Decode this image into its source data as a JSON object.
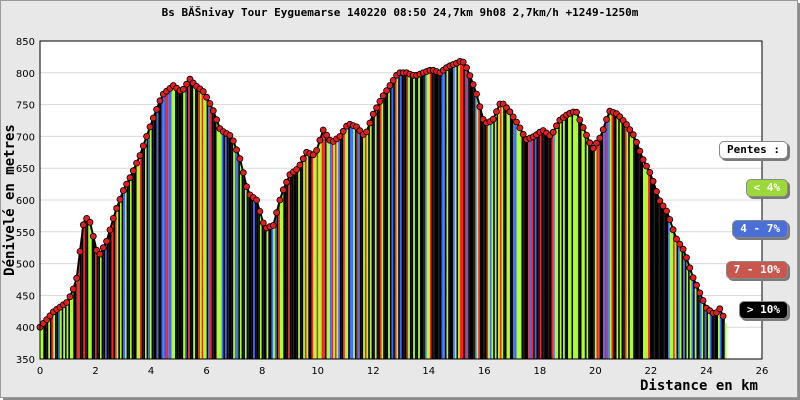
{
  "chart_data": {
    "type": "area",
    "title": "Bs BĂŠnivay Tour Eyguemarse 140220 08:50 24,7km 9h08 2,7km/h +1249-1250m",
    "xlabel": "Distance en km",
    "ylabel": "Dénivelé en metres",
    "xlim": [
      0,
      26
    ],
    "ylim": [
      350,
      850
    ],
    "x_ticks": [
      "0",
      "2",
      "4",
      "6",
      "8",
      "10",
      "12",
      "14",
      "16",
      "18",
      "20",
      "22",
      "24",
      "26"
    ],
    "y_ticks": [
      "350",
      "400",
      "450",
      "500",
      "550",
      "600",
      "650",
      "700",
      "750",
      "800",
      "850"
    ],
    "grid": true,
    "legend_placement": "right",
    "series": [
      {
        "x": [
          0,
          0.5,
          1.0,
          1.3,
          1.6,
          1.8,
          2.1,
          2.4,
          2.7,
          3.0,
          3.3,
          3.6,
          4.0,
          4.4,
          4.8,
          5.1,
          5.4,
          5.6,
          5.9,
          6.2,
          6.5,
          6.9,
          7.2,
          7.5,
          7.8,
          8.1,
          8.4,
          8.7,
          9.0,
          9.3,
          9.6,
          9.9,
          10.2,
          10.5,
          10.8,
          11.1,
          11.4,
          11.7,
          12.0,
          12.3,
          12.6,
          12.9,
          13.2,
          13.5,
          13.8,
          14.1,
          14.4,
          14.7,
          15.0,
          15.2,
          15.4,
          15.7,
          16.0,
          16.3,
          16.6,
          16.9,
          17.2,
          17.5,
          17.8,
          18.1,
          18.4,
          18.7,
          19.0,
          19.3,
          19.6,
          19.9,
          20.2,
          20.5,
          20.8,
          21.1,
          21.4,
          21.7,
          22.0,
          22.3,
          22.6,
          22.9,
          23.2,
          23.5,
          23.8,
          24.0,
          24.3,
          24.5,
          24.7
        ],
        "values": [
          400,
          425,
          440,
          470,
          575,
          565,
          510,
          535,
          580,
          615,
          640,
          670,
          720,
          765,
          780,
          770,
          790,
          780,
          770,
          745,
          710,
          700,
          665,
          610,
          600,
          555,
          560,
          610,
          640,
          650,
          675,
          670,
          710,
          690,
          700,
          720,
          715,
          700,
          735,
          760,
          780,
          800,
          800,
          795,
          800,
          805,
          800,
          810,
          815,
          820,
          805,
          770,
          720,
          725,
          755,
          740,
          720,
          695,
          700,
          710,
          700,
          725,
          735,
          740,
          710,
          680,
          700,
          740,
          735,
          720,
          700,
          665,
          640,
          600,
          580,
          540,
          520,
          480,
          450,
          430,
          420,
          430,
          405
        ]
      }
    ],
    "slope_palette": [
      "#a8ff2a",
      "#3c6cff",
      "#ff2020",
      "#000000"
    ]
  },
  "legend": {
    "title": "Pentes :",
    "items": [
      {
        "label": "< 4%",
        "color": "#9cd83a"
      },
      {
        "label": "4 - 7%",
        "color": "#4a6fd8"
      },
      {
        "label": "7 - 10%",
        "color": "#c8574e"
      },
      {
        "label": "> 10%",
        "color": "#000000"
      }
    ]
  }
}
